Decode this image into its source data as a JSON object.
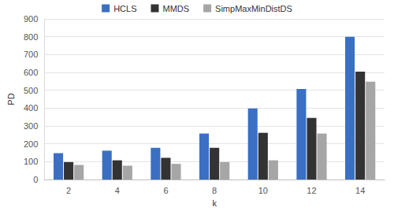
{
  "chart_data": {
    "type": "bar",
    "x_label": "k",
    "y_label": "PD",
    "categories": [
      "2",
      "4",
      "6",
      "8",
      "10",
      "12",
      "14"
    ],
    "series": [
      {
        "name": "HCLS",
        "color": "#3a6fc4",
        "values": [
          148,
          162,
          178,
          258,
          398,
          508,
          800
        ]
      },
      {
        "name": "MMDS",
        "color": "#333333",
        "values": [
          98,
          108,
          122,
          178,
          262,
          345,
          605
        ]
      },
      {
        "name": "SimpMaxMinDistDS",
        "color": "#a6a6a6",
        "values": [
          82,
          78,
          88,
          98,
          108,
          258,
          548
        ]
      }
    ],
    "ylim": [
      0,
      900
    ],
    "yticks": [
      0,
      100,
      200,
      300,
      400,
      500,
      600,
      700,
      800,
      900
    ],
    "grid": true,
    "legend": "top"
  }
}
